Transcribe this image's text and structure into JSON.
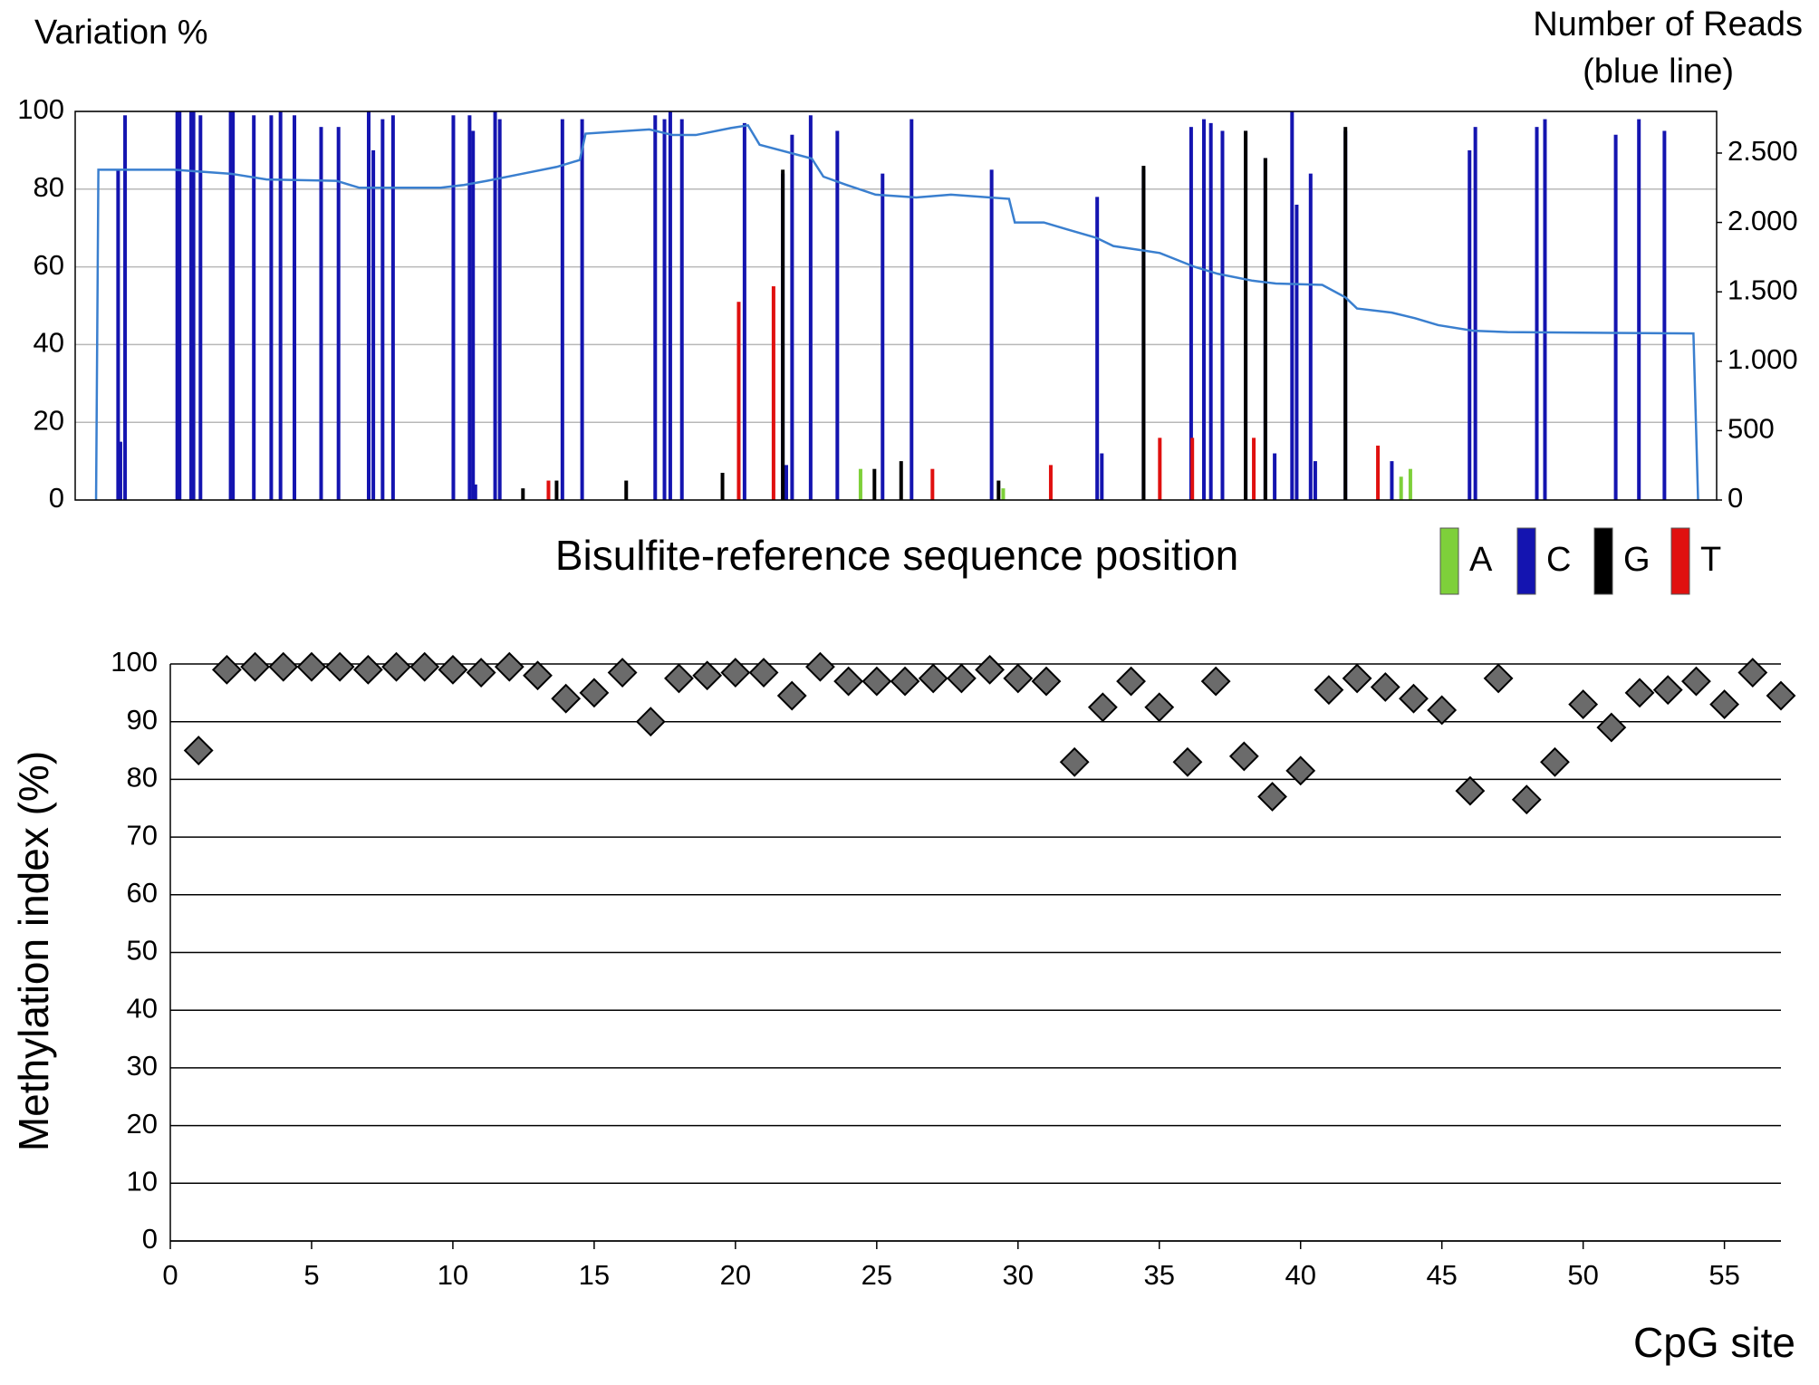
{
  "chart_data": [
    {
      "type": "bar",
      "ylabel": "Variation %",
      "y2label": [
        "Number of Reads",
        "(blue line)"
      ],
      "xlabel": "Bisulfite-reference sequence position",
      "xlim": [
        0,
        1415
      ],
      "ylim": [
        0,
        100
      ],
      "yticks": [
        0,
        20,
        40,
        60,
        80,
        100
      ],
      "y2lim": [
        0,
        2800
      ],
      "y2ticks": [
        0,
        500,
        {
          "value": 1000,
          "label": "1.000"
        },
        {
          "value": 1500,
          "label": "1.500"
        },
        {
          "value": 2000,
          "label": "2.000"
        },
        {
          "value": 2500,
          "label": "2.500"
        }
      ],
      "grid": true,
      "legend": "bottom-right",
      "series": [
        {
          "name": "A",
          "color": "#7ed03a",
          "x": [
            677,
            800,
            1143,
            1151
          ],
          "values": [
            8,
            3,
            6,
            8
          ]
        },
        {
          "name": "C",
          "color": "#1414b0",
          "x": [
            37,
            39,
            43,
            88,
            90,
            100,
            102,
            108,
            134,
            136,
            154,
            169,
            177,
            189,
            212,
            227,
            253,
            257,
            265,
            274,
            326,
            340,
            343,
            362,
            366,
            420,
            437,
            500,
            508,
            513,
            523,
            577,
            610,
            618,
            634,
            657,
            696,
            721,
            790,
            881,
            921,
            962,
            973,
            979,
            989,
            1009,
            1026,
            1049,
            1053,
            1065,
            1095,
            1202,
            1207,
            1260,
            1267,
            1328,
            1348,
            1370,
            345,
            613,
            885,
            1034,
            1069,
            1135
          ],
          "values": [
            85,
            15,
            99,
            100,
            100,
            100,
            100,
            99,
            100,
            100,
            99,
            99,
            100,
            99,
            96,
            96,
            100,
            90,
            98,
            99,
            99,
            99,
            95,
            100,
            98,
            98,
            98,
            99,
            98,
            100,
            98,
            97,
            84,
            94,
            99,
            95,
            84,
            98,
            85,
            78,
            85,
            96,
            98,
            97,
            95,
            95,
            88,
            100,
            76,
            84,
            95,
            90,
            96,
            96,
            98,
            94,
            98,
            95,
            4,
            9,
            12,
            12,
            10,
            10
          ]
        },
        {
          "name": "G",
          "color": "#000000",
          "x": [
            386,
            415,
            475,
            558,
            610,
            689,
            712,
            796,
            921,
            1009,
            1026,
            1095
          ],
          "values": [
            3,
            5,
            5,
            7,
            85,
            8,
            10,
            5,
            86,
            95,
            88,
            96
          ]
        },
        {
          "name": "T",
          "color": "#e0100f",
          "x": [
            408,
            572,
            602,
            739,
            841,
            935,
            963,
            1016,
            1123
          ],
          "values": [
            5,
            51,
            55,
            8,
            9,
            16,
            16,
            16,
            14
          ]
        }
      ],
      "line": {
        "color": "#3a7fcf",
        "axis": "y2",
        "x": [
          18,
          20,
          85,
          135,
          165,
          225,
          245,
          315,
          335,
          355,
          385,
          415,
          435,
          440,
          495,
          515,
          535,
          565,
          580,
          590,
          635,
          645,
          665,
          690,
          725,
          755,
          805,
          810,
          835,
          855,
          880,
          895,
          935,
          965,
          985,
          1015,
          1035,
          1075,
          1095,
          1105,
          1135,
          1155,
          1175,
          1205,
          1235,
          1395,
          1399
        ],
        "values": [
          0,
          2380,
          2380,
          2350,
          2310,
          2300,
          2250,
          2250,
          2270,
          2300,
          2350,
          2400,
          2450,
          2640,
          2670,
          2630,
          2630,
          2680,
          2700,
          2560,
          2460,
          2330,
          2270,
          2200,
          2180,
          2200,
          2170,
          2000,
          2000,
          1950,
          1890,
          1830,
          1780,
          1680,
          1630,
          1580,
          1560,
          1550,
          1460,
          1380,
          1350,
          1310,
          1260,
          1220,
          1210,
          1200,
          0
        ]
      }
    },
    {
      "type": "scatter",
      "ylabel": "Methylation index (%)",
      "xlabel": "CpG site",
      "xlim": [
        0,
        57
      ],
      "xticks": [
        0,
        5,
        10,
        15,
        20,
        25,
        30,
        35,
        40,
        45,
        50,
        55
      ],
      "ylim": [
        0,
        100
      ],
      "yticks": [
        0,
        10,
        20,
        30,
        40,
        50,
        60,
        70,
        80,
        90,
        100
      ],
      "grid": true,
      "color": "#6b6b6b",
      "x": [
        1,
        2,
        3,
        4,
        5,
        6,
        7,
        8,
        9,
        10,
        11,
        12,
        13,
        14,
        15,
        16,
        17,
        18,
        19,
        20,
        21,
        22,
        23,
        24,
        25,
        26,
        27,
        28,
        29,
        30,
        31,
        32,
        33,
        34,
        35,
        36,
        37,
        38,
        39,
        40,
        41,
        42,
        43,
        44,
        45,
        46,
        47,
        48,
        49,
        50,
        51,
        52,
        53,
        54,
        55,
        56,
        57
      ],
      "values": [
        85,
        99,
        99.5,
        99.5,
        99.5,
        99.5,
        99,
        99.5,
        99.5,
        99,
        98.5,
        99.5,
        98,
        94,
        95,
        98.5,
        90,
        97.5,
        98,
        98.5,
        98.5,
        94.5,
        99.5,
        97,
        97,
        97,
        97.5,
        97.5,
        99,
        97.5,
        97,
        83,
        92.5,
        97,
        92.5,
        83,
        97,
        84,
        77,
        81.5,
        95.5,
        97.5,
        96,
        94,
        92,
        78,
        97.5,
        76.5,
        83,
        93,
        89,
        95,
        95.5,
        97,
        93,
        98.5,
        94.5
      ]
    }
  ]
}
